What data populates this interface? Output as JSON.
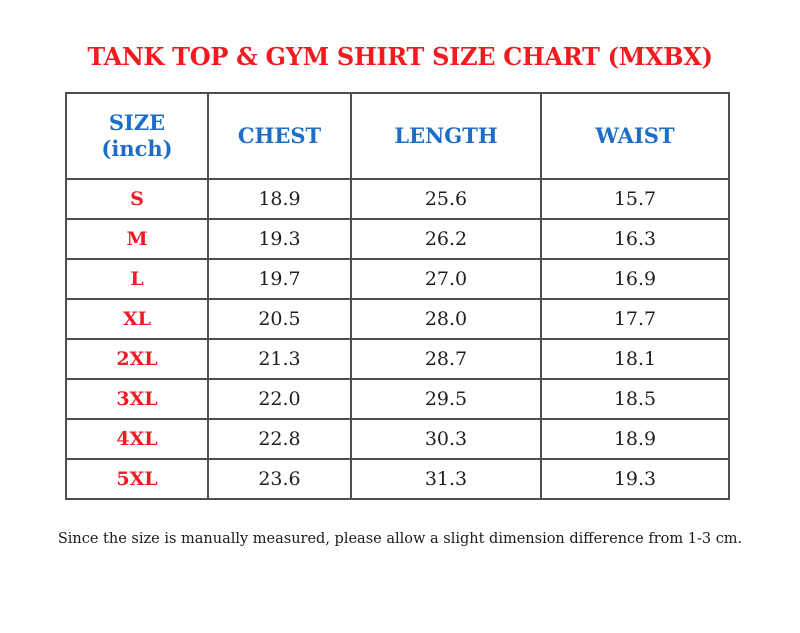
{
  "title": "TANK TOP & GYM SHIRT SIZE CHART (MXBX)",
  "footnote": "Since the size is manually measured, please allow a slight dimension difference from 1-3 cm.",
  "colors": {
    "title_red": "#f01b1f",
    "header_blue": "#1e6ec7",
    "size_red": "#ee1c24",
    "value_black": "#1f1f1f",
    "border_gray": "#4d4d4f",
    "background": "#ffffff"
  },
  "table": {
    "headers": [
      "SIZE\n(inch)",
      "CHEST",
      "LENGTH",
      "WAIST"
    ],
    "rows": [
      {
        "size": "S",
        "chest": "18.9",
        "length": "25.6",
        "waist": "15.7"
      },
      {
        "size": "M",
        "chest": "19.3",
        "length": "26.2",
        "waist": "16.3"
      },
      {
        "size": "L",
        "chest": "19.7",
        "length": "27.0",
        "waist": "16.9"
      },
      {
        "size": "XL",
        "chest": "20.5",
        "length": "28.0",
        "waist": "17.7"
      },
      {
        "size": "2XL",
        "chest": "21.3",
        "length": "28.7",
        "waist": "18.1"
      },
      {
        "size": "3XL",
        "chest": "22.0",
        "length": "29.5",
        "waist": "18.5"
      },
      {
        "size": "4XL",
        "chest": "22.8",
        "length": "30.3",
        "waist": "18.9"
      },
      {
        "size": "5XL",
        "chest": "23.6",
        "length": "31.3",
        "waist": "19.3"
      }
    ]
  },
  "chart_data": {
    "type": "table",
    "title": "TANK TOP & GYM SHIRT SIZE CHART (MXBX)",
    "columns": [
      "SIZE (inch)",
      "CHEST",
      "LENGTH",
      "WAIST"
    ],
    "rows": [
      [
        "S",
        18.9,
        25.6,
        15.7
      ],
      [
        "M",
        19.3,
        26.2,
        16.3
      ],
      [
        "L",
        19.7,
        27.0,
        16.9
      ],
      [
        "XL",
        20.5,
        28.0,
        17.7
      ],
      [
        "2XL",
        21.3,
        28.7,
        18.1
      ],
      [
        "3XL",
        22.0,
        29.5,
        18.5
      ],
      [
        "4XL",
        22.8,
        30.3,
        18.9
      ],
      [
        "5XL",
        23.6,
        31.3,
        19.3
      ]
    ]
  }
}
